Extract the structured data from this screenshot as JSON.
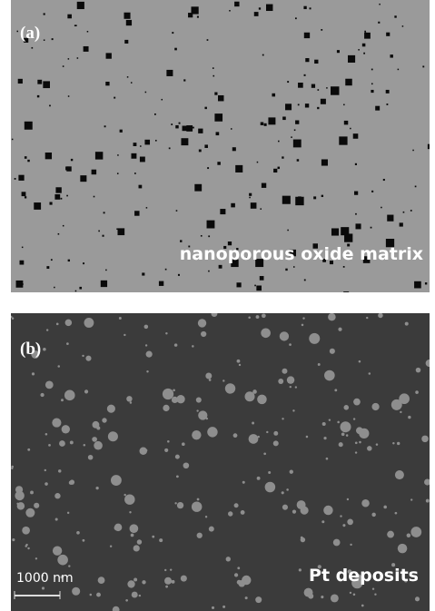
{
  "panels": [
    {
      "label": "(a)",
      "caption": "nanoporous oxide matrix"
    },
    {
      "label": "(b)",
      "caption": "Pt deposits",
      "scale_bar": "1000 nm"
    }
  ]
}
